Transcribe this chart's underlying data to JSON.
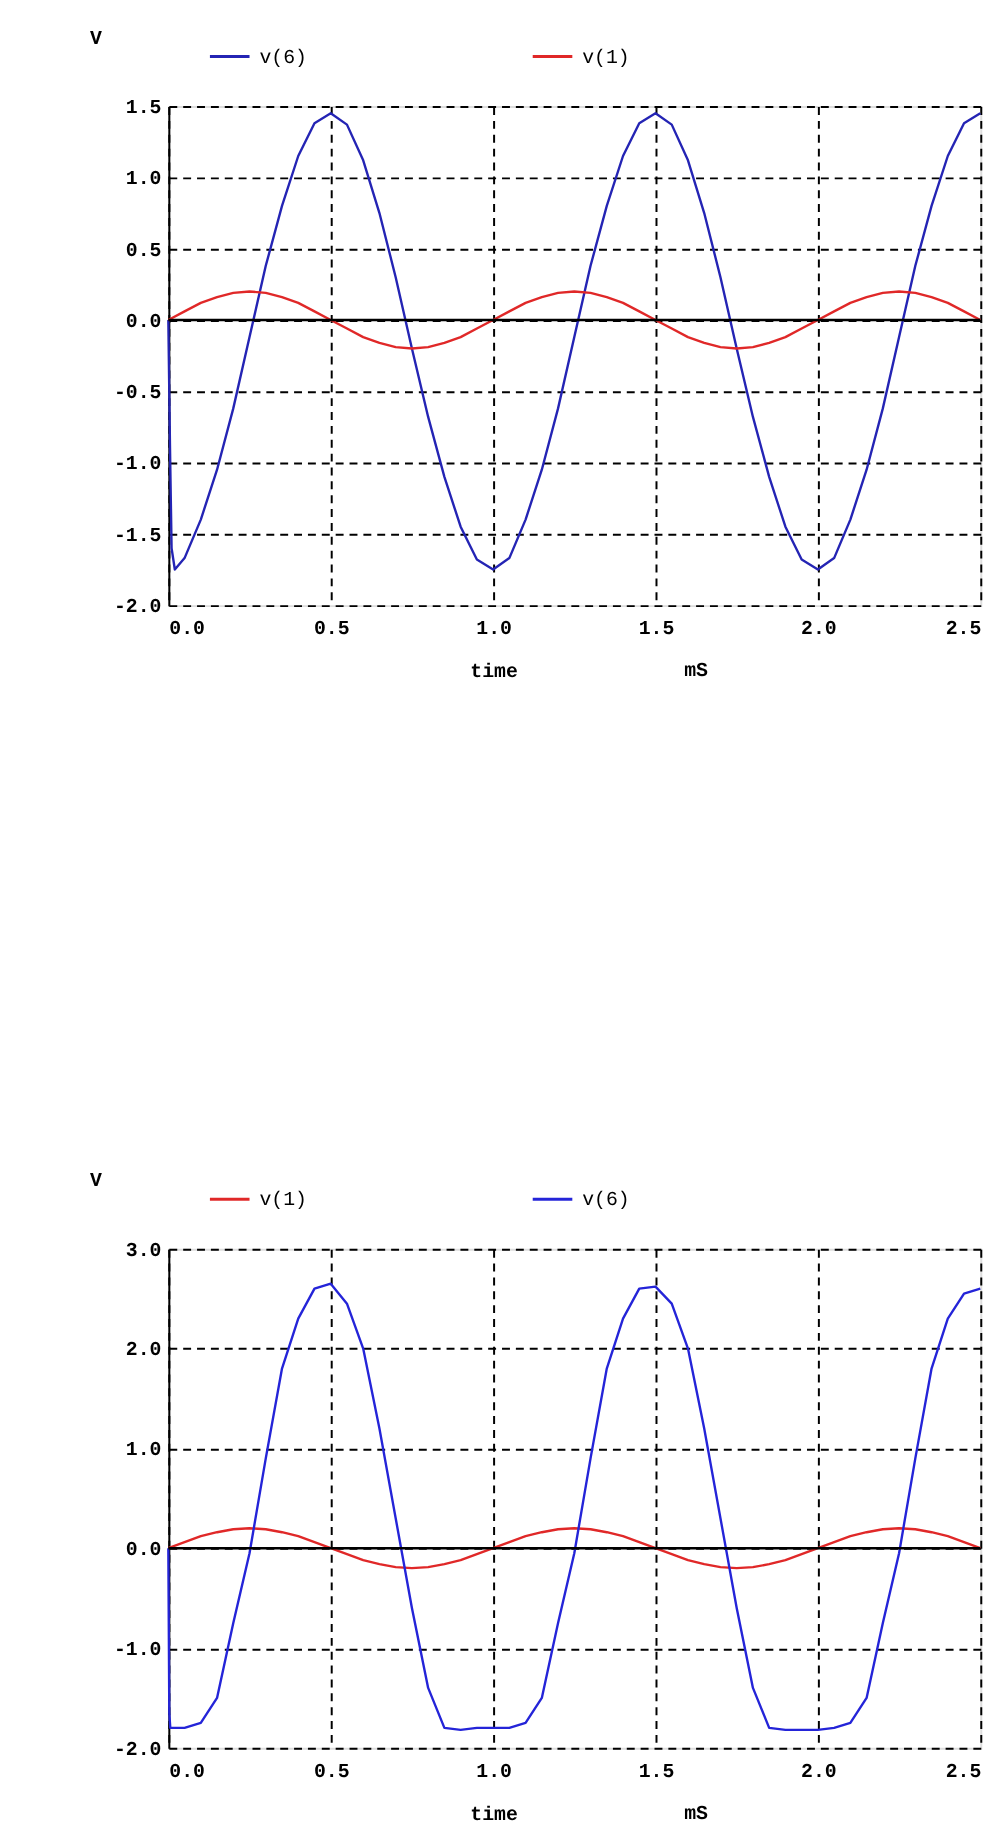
{
  "chart_data": [
    {
      "type": "line",
      "xlabel": "time",
      "ylabel": "V",
      "annotations": [
        "mS"
      ],
      "legend": "top left",
      "grid": true,
      "line_style": "solid",
      "marker": "none",
      "xlim": [
        0,
        2.5
      ],
      "xticks": [
        {
          "value": 0,
          "label": "0.0"
        },
        0.5,
        {
          "value": 1,
          "label": "1.0"
        },
        1.5,
        {
          "value": 2,
          "label": "2.0"
        },
        2.5
      ],
      "ylim": [
        -2,
        1.5
      ],
      "yticks": [
        {
          "value": -2,
          "label": "-2.0"
        },
        -1.5,
        {
          "value": -1,
          "label": "-1.0"
        },
        -0.5,
        {
          "value": 0,
          "label": "0.0"
        },
        0.5,
        {
          "value": 1,
          "label": "1.0"
        },
        1.5
      ],
      "ref_lines": [
        {
          "axis": "y",
          "value": 0,
          "color": "#000000",
          "line_style": "solid"
        }
      ],
      "series": [
        {
          "name": "v(6)",
          "color": "#2424b4",
          "x": [
            0,
            0.005,
            0.01,
            0.02,
            0.05,
            0.1,
            0.15,
            0.2,
            0.25,
            0.3,
            0.35,
            0.4,
            0.45,
            0.5,
            0.55,
            0.6,
            0.65,
            0.7,
            0.75,
            0.8,
            0.85,
            0.9,
            0.95,
            1.0,
            1.05,
            1.1,
            1.15,
            1.2,
            1.25,
            1.3,
            1.35,
            1.4,
            1.45,
            1.5,
            1.55,
            1.6,
            1.65,
            1.7,
            1.75,
            1.8,
            1.85,
            1.9,
            1.95,
            2.0,
            2.05,
            2.1,
            2.15,
            2.2,
            2.25,
            2.3,
            2.35,
            2.4,
            2.45,
            2.5
          ],
          "values": [
            0,
            -0.87,
            -1.6,
            -1.75,
            -1.67,
            -1.4,
            -1.05,
            -0.62,
            -0.12,
            0.38,
            0.8,
            1.15,
            1.38,
            1.45,
            1.37,
            1.12,
            0.75,
            0.3,
            -0.2,
            -0.68,
            -1.1,
            -1.45,
            -1.68,
            -1.75,
            -1.67,
            -1.4,
            -1.05,
            -0.62,
            -0.12,
            0.38,
            0.8,
            1.15,
            1.38,
            1.45,
            1.37,
            1.12,
            0.75,
            0.3,
            -0.2,
            -0.68,
            -1.1,
            -1.45,
            -1.68,
            -1.75,
            -1.67,
            -1.4,
            -1.05,
            -0.62,
            -0.12,
            0.38,
            0.8,
            1.15,
            1.38,
            1.45
          ]
        },
        {
          "name": "v(1)",
          "color": "#e02828",
          "x": [
            0,
            0.05,
            0.1,
            0.15,
            0.2,
            0.25,
            0.3,
            0.35,
            0.4,
            0.45,
            0.5,
            0.55,
            0.6,
            0.65,
            0.7,
            0.75,
            0.8,
            0.85,
            0.9,
            0.95,
            1.0,
            1.05,
            1.1,
            1.15,
            1.2,
            1.25,
            1.3,
            1.35,
            1.4,
            1.45,
            1.5,
            1.55,
            1.6,
            1.65,
            1.7,
            1.75,
            1.8,
            1.85,
            1.9,
            1.95,
            2.0,
            2.05,
            2.1,
            2.15,
            2.2,
            2.25,
            2.3,
            2.35,
            2.4,
            2.45,
            2.5
          ],
          "values": [
            0,
            0.06,
            0.12,
            0.16,
            0.19,
            0.2,
            0.19,
            0.16,
            0.12,
            0.06,
            0,
            -0.06,
            -0.12,
            -0.16,
            -0.19,
            -0.2,
            -0.19,
            -0.16,
            -0.12,
            -0.06,
            0,
            0.06,
            0.12,
            0.16,
            0.19,
            0.2,
            0.19,
            0.16,
            0.12,
            0.06,
            0,
            -0.06,
            -0.12,
            -0.16,
            -0.19,
            -0.2,
            -0.19,
            -0.16,
            -0.12,
            -0.06,
            0,
            0.06,
            0.12,
            0.16,
            0.19,
            0.2,
            0.19,
            0.16,
            0.12,
            0.06,
            0
          ]
        }
      ]
    },
    {
      "type": "line",
      "xlabel": "time",
      "ylabel": "V",
      "annotations": [
        "mS"
      ],
      "legend": "top left",
      "grid": true,
      "line_style": "solid",
      "marker": "none",
      "xlim": [
        0,
        2.5
      ],
      "xticks": [
        {
          "value": 0,
          "label": "0.0"
        },
        0.5,
        {
          "value": 1,
          "label": "1.0"
        },
        1.5,
        {
          "value": 2,
          "label": "2.0"
        },
        2.5
      ],
      "ylim": [
        -2,
        3
      ],
      "yticks": [
        {
          "value": -2,
          "label": "-2.0"
        },
        {
          "value": -1,
          "label": "-1.0"
        },
        {
          "value": 0,
          "label": "0.0"
        },
        {
          "value": 1,
          "label": "1.0"
        },
        {
          "value": 2,
          "label": "2.0"
        },
        {
          "value": 3,
          "label": "3.0"
        }
      ],
      "ref_lines": [
        {
          "axis": "y",
          "value": 0,
          "color": "#000000",
          "line_style": "solid"
        }
      ],
      "series": [
        {
          "name": "v(1)",
          "color": "#e02828",
          "x": [
            0,
            0.05,
            0.1,
            0.15,
            0.2,
            0.25,
            0.3,
            0.35,
            0.4,
            0.45,
            0.5,
            0.55,
            0.6,
            0.65,
            0.7,
            0.75,
            0.8,
            0.85,
            0.9,
            0.95,
            1.0,
            1.05,
            1.1,
            1.15,
            1.2,
            1.25,
            1.3,
            1.35,
            1.4,
            1.45,
            1.5,
            1.55,
            1.6,
            1.65,
            1.7,
            1.75,
            1.8,
            1.85,
            1.9,
            1.95,
            2.0,
            2.05,
            2.1,
            2.15,
            2.2,
            2.25,
            2.3,
            2.35,
            2.4,
            2.45,
            2.5
          ],
          "values": [
            0,
            0.06,
            0.12,
            0.16,
            0.19,
            0.2,
            0.19,
            0.16,
            0.12,
            0.06,
            0,
            -0.06,
            -0.12,
            -0.16,
            -0.19,
            -0.2,
            -0.19,
            -0.16,
            -0.12,
            -0.06,
            0,
            0.06,
            0.12,
            0.16,
            0.19,
            0.2,
            0.19,
            0.16,
            0.12,
            0.06,
            0,
            -0.06,
            -0.12,
            -0.16,
            -0.19,
            -0.2,
            -0.19,
            -0.16,
            -0.12,
            -0.06,
            0,
            0.06,
            0.12,
            0.16,
            0.19,
            0.2,
            0.19,
            0.16,
            0.12,
            0.06,
            0
          ]
        },
        {
          "name": "v(6)",
          "color": "#2424d8",
          "x": [
            0,
            0.003,
            0.006,
            0.05,
            0.1,
            0.15,
            0.2,
            0.25,
            0.3,
            0.35,
            0.4,
            0.45,
            0.5,
            0.55,
            0.6,
            0.65,
            0.7,
            0.75,
            0.8,
            0.85,
            0.9,
            0.95,
            1.0,
            1.05,
            1.1,
            1.15,
            1.2,
            1.25,
            1.3,
            1.35,
            1.4,
            1.45,
            1.5,
            1.55,
            1.6,
            1.65,
            1.7,
            1.75,
            1.8,
            1.85,
            1.9,
            1.95,
            2.0,
            2.05,
            2.1,
            2.15,
            2.2,
            2.25,
            2.3,
            2.35,
            2.4,
            2.45,
            2.5
          ],
          "values": [
            0,
            -1.65,
            -1.8,
            -1.8,
            -1.75,
            -1.5,
            -0.75,
            -0.05,
            0.9,
            1.8,
            2.3,
            2.6,
            2.65,
            2.45,
            2.0,
            1.2,
            0.3,
            -0.6,
            -1.4,
            -1.8,
            -1.82,
            -1.8,
            -1.8,
            -1.8,
            -1.75,
            -1.5,
            -0.75,
            -0.05,
            0.9,
            1.8,
            2.3,
            2.6,
            2.62,
            2.45,
            2.0,
            1.2,
            0.3,
            -0.6,
            -1.4,
            -1.8,
            -1.82,
            -1.82,
            -1.82,
            -1.8,
            -1.75,
            -1.5,
            -0.75,
            -0.05,
            0.9,
            1.8,
            2.3,
            2.55,
            2.6
          ]
        }
      ]
    }
  ]
}
